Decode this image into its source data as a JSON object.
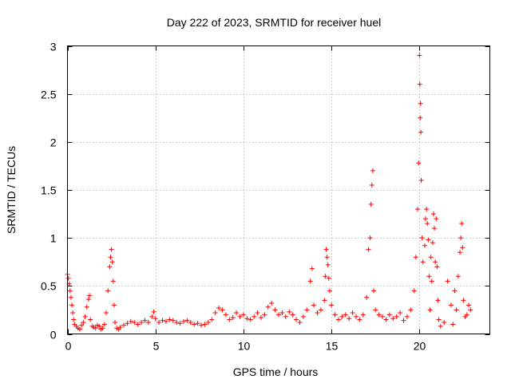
{
  "chart_data": {
    "type": "scatter",
    "title": "Day 222 of 2023, SRMTID for receiver huel",
    "xlabel": "GPS time / hours",
    "ylabel": "SRMTID / TECUs",
    "xlim": [
      0,
      24
    ],
    "ylim": [
      0,
      3
    ],
    "xticks": [
      0,
      5,
      10,
      15,
      20
    ],
    "xtick_labels": [
      "0",
      "5",
      "10",
      "15",
      "20"
    ],
    "yticks": [
      0,
      0.5,
      1,
      1.5,
      2,
      2.5,
      3
    ],
    "ytick_labels": [
      "0",
      "0.5",
      "1",
      "1.5",
      "2",
      "2.5",
      "3"
    ],
    "grid": true,
    "marker": "+",
    "color": "#ff0000",
    "series": [
      {
        "name": "SRMTID",
        "x": [
          0.0,
          0.05,
          0.1,
          0.15,
          0.2,
          0.25,
          0.3,
          0.35,
          0.4,
          0.5,
          0.6,
          0.7,
          0.8,
          0.9,
          1.0,
          1.1,
          1.2,
          1.25,
          1.3,
          1.4,
          1.5,
          1.6,
          1.7,
          1.8,
          1.9,
          2.0,
          2.1,
          2.2,
          2.3,
          2.4,
          2.45,
          2.5,
          2.55,
          2.6,
          2.65,
          2.7,
          2.8,
          2.9,
          3.0,
          3.2,
          3.4,
          3.6,
          3.8,
          4.0,
          4.2,
          4.4,
          4.6,
          4.8,
          4.9,
          5.0,
          5.2,
          5.4,
          5.6,
          5.8,
          6.0,
          6.2,
          6.4,
          6.6,
          6.8,
          7.0,
          7.2,
          7.4,
          7.6,
          7.8,
          8.0,
          8.2,
          8.4,
          8.6,
          8.8,
          9.0,
          9.2,
          9.4,
          9.6,
          9.8,
          10.0,
          10.2,
          10.4,
          10.6,
          10.8,
          11.0,
          11.2,
          11.4,
          11.6,
          11.8,
          12.0,
          12.2,
          12.4,
          12.6,
          12.8,
          13.0,
          13.2,
          13.4,
          13.6,
          13.8,
          13.9,
          14.0,
          14.2,
          14.4,
          14.6,
          14.65,
          14.7,
          14.75,
          14.8,
          14.85,
          14.9,
          15.0,
          15.2,
          15.4,
          15.6,
          15.8,
          16.0,
          16.2,
          16.4,
          16.6,
          16.8,
          17.0,
          17.1,
          17.2,
          17.25,
          17.3,
          17.35,
          17.4,
          17.5,
          17.7,
          17.9,
          18.1,
          18.3,
          18.5,
          18.7,
          18.9,
          19.1,
          19.3,
          19.5,
          19.7,
          19.8,
          19.9,
          19.95,
          20.0,
          20.02,
          20.04,
          20.06,
          20.08,
          20.1,
          20.15,
          20.2,
          20.3,
          20.35,
          20.4,
          20.45,
          20.5,
          20.55,
          20.6,
          20.65,
          20.7,
          20.75,
          20.8,
          20.85,
          20.9,
          20.95,
          21.0,
          21.05,
          21.1,
          21.2,
          21.4,
          21.6,
          21.8,
          21.9,
          22.0,
          22.1,
          22.2,
          22.3,
          22.35,
          22.4,
          22.45,
          22.5,
          22.6,
          22.7,
          22.8,
          22.9
        ],
        "y": [
          0.62,
          0.58,
          0.52,
          0.45,
          0.38,
          0.3,
          0.22,
          0.15,
          0.1,
          0.08,
          0.06,
          0.05,
          0.09,
          0.12,
          0.18,
          0.28,
          0.36,
          0.4,
          0.15,
          0.08,
          0.07,
          0.06,
          0.09,
          0.08,
          0.05,
          0.06,
          0.1,
          0.22,
          0.45,
          0.7,
          0.8,
          0.88,
          0.75,
          0.55,
          0.3,
          0.12,
          0.06,
          0.05,
          0.07,
          0.09,
          0.11,
          0.13,
          0.12,
          0.1,
          0.12,
          0.14,
          0.12,
          0.18,
          0.23,
          0.16,
          0.12,
          0.14,
          0.13,
          0.15,
          0.14,
          0.12,
          0.11,
          0.13,
          0.14,
          0.12,
          0.1,
          0.11,
          0.09,
          0.1,
          0.12,
          0.15,
          0.22,
          0.27,
          0.25,
          0.2,
          0.15,
          0.17,
          0.22,
          0.18,
          0.2,
          0.16,
          0.15,
          0.18,
          0.22,
          0.17,
          0.2,
          0.28,
          0.32,
          0.25,
          0.2,
          0.22,
          0.18,
          0.23,
          0.2,
          0.15,
          0.12,
          0.18,
          0.25,
          0.55,
          0.68,
          0.3,
          0.22,
          0.25,
          0.35,
          0.6,
          0.88,
          0.8,
          0.72,
          0.58,
          0.45,
          0.3,
          0.2,
          0.15,
          0.18,
          0.2,
          0.16,
          0.22,
          0.18,
          0.15,
          0.2,
          0.38,
          0.88,
          1.0,
          1.35,
          1.55,
          1.7,
          0.45,
          0.25,
          0.2,
          0.18,
          0.15,
          0.2,
          0.16,
          0.18,
          0.22,
          0.14,
          0.18,
          0.25,
          0.45,
          0.8,
          1.3,
          1.78,
          2.9,
          2.6,
          2.25,
          2.4,
          2.1,
          1.6,
          1.0,
          0.75,
          0.92,
          1.2,
          1.3,
          1.15,
          0.98,
          0.6,
          0.25,
          0.8,
          0.55,
          0.95,
          1.25,
          1.1,
          0.75,
          1.2,
          0.7,
          0.35,
          0.15,
          0.08,
          0.12,
          0.55,
          0.3,
          0.1,
          0.45,
          0.25,
          0.6,
          0.85,
          1.0,
          1.15,
          0.9,
          0.35,
          0.18,
          0.2,
          0.3,
          0.25
        ]
      }
    ]
  }
}
